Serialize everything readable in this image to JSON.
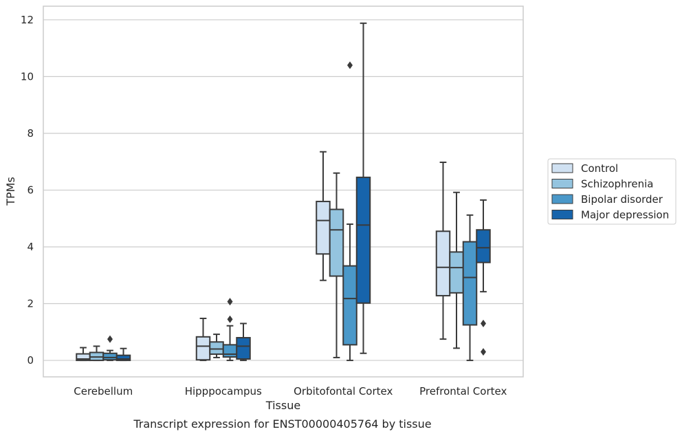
{
  "chart_data": {
    "type": "boxplot",
    "xlabel": "Tissue",
    "ylabel": "TPMs",
    "caption": "Transcript expression for ENST00000405764 by tissue",
    "ylim": [
      -0.58,
      12.48
    ],
    "yticks": [
      0,
      2,
      4,
      6,
      8,
      10,
      12
    ],
    "grid": "horizontal",
    "legend_position": "right",
    "categories": [
      "Cerebellum",
      "Hipppocampus",
      "Orbitofontal Cortex",
      "Prefrontal Cortex"
    ],
    "series": [
      {
        "name": "Control",
        "color": "#d0e1f2",
        "boxes": [
          {
            "whislo": 0,
            "q1": 0.0,
            "med": 0.05,
            "q3": 0.23,
            "whishi": 0.45,
            "fliers": []
          },
          {
            "whislo": 0,
            "q1": 0.02,
            "med": 0.5,
            "q3": 0.83,
            "whishi": 1.48,
            "fliers": []
          },
          {
            "whislo": 2.82,
            "q1": 3.75,
            "med": 4.93,
            "q3": 5.6,
            "whishi": 7.35,
            "fliers": []
          },
          {
            "whislo": 0.75,
            "q1": 2.28,
            "med": 3.28,
            "q3": 4.55,
            "whishi": 6.98,
            "fliers": []
          }
        ]
      },
      {
        "name": "Schizophrenia",
        "color": "#94c4df",
        "boxes": [
          {
            "whislo": 0,
            "q1": 0.0,
            "med": 0.12,
            "q3": 0.28,
            "whislo2": 0,
            "whishi": 0.5,
            "fliers": []
          },
          {
            "whislo": 0.1,
            "q1": 0.22,
            "med": 0.4,
            "q3": 0.65,
            "whishi": 0.92,
            "fliers": []
          },
          {
            "whislo": 0.1,
            "q1": 2.97,
            "med": 4.6,
            "q3": 5.32,
            "whishi": 6.6,
            "fliers": []
          },
          {
            "whislo": 0.43,
            "q1": 2.38,
            "med": 3.27,
            "q3": 3.82,
            "whishi": 5.92,
            "fliers": []
          }
        ]
      },
      {
        "name": "Bipolar disorder",
        "color": "#4a98c9",
        "boxes": [
          {
            "whislo": 0,
            "q1": 0.02,
            "med": 0.1,
            "q3": 0.25,
            "whishi": 0.35,
            "fliers": [
              0.75
            ]
          },
          {
            "whislo": 0,
            "q1": 0.12,
            "med": 0.22,
            "q3": 0.55,
            "whishi": 1.22,
            "fliers": [
              1.45,
              2.07
            ]
          },
          {
            "whislo": 0,
            "q1": 0.55,
            "med": 2.18,
            "q3": 3.33,
            "whishi": 4.8,
            "fliers": [
              10.4
            ]
          },
          {
            "whislo": 0,
            "q1": 1.25,
            "med": 2.92,
            "q3": 4.18,
            "whishi": 5.12,
            "fliers": []
          }
        ]
      },
      {
        "name": "Major depression",
        "color": "#1764ab",
        "boxes": [
          {
            "whislo": 0,
            "q1": 0.0,
            "med": 0.05,
            "q3": 0.18,
            "whishi": 0.42,
            "fliers": []
          },
          {
            "whislo": 0,
            "q1": 0.05,
            "med": 0.5,
            "q3": 0.8,
            "whishi": 1.3,
            "fliers": []
          },
          {
            "whislo": 0.25,
            "q1": 2.02,
            "med": 4.77,
            "q3": 6.45,
            "whishi": 11.88,
            "fliers": []
          },
          {
            "whislo": 2.42,
            "q1": 3.45,
            "med": 3.97,
            "q3": 4.6,
            "whishi": 5.65,
            "fliers": [
              1.3,
              0.3
            ]
          }
        ]
      }
    ]
  },
  "colors": {
    "line": "#3a3a3a",
    "grid": "#cccccc",
    "frame": "#cccccc",
    "text": "#262626"
  }
}
